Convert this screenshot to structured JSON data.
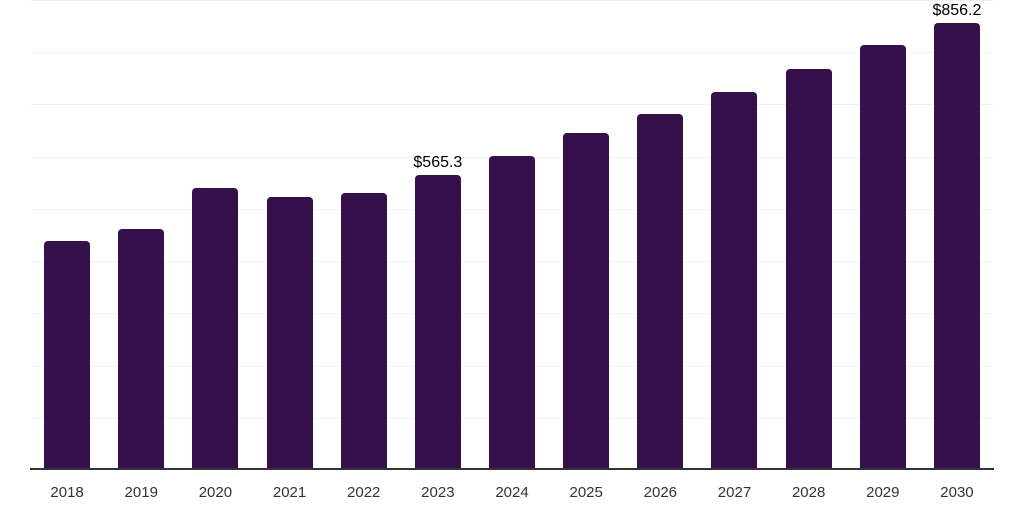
{
  "chart_data": {
    "type": "bar",
    "title": "",
    "xlabel": "",
    "ylabel": "",
    "categories": [
      "2018",
      "2019",
      "2020",
      "2021",
      "2022",
      "2023",
      "2024",
      "2025",
      "2026",
      "2027",
      "2028",
      "2029",
      "2030"
    ],
    "values": [
      439.1,
      460.9,
      540.6,
      523.3,
      531.0,
      565.3,
      601.3,
      645.3,
      681.7,
      723.2,
      767.3,
      813.8,
      856.2
    ],
    "point_labels": {
      "2023": "$565.3",
      "2030": "$856.2"
    },
    "ylim": [
      0,
      900
    ],
    "grid_step": 100,
    "grid": true,
    "legend": false,
    "colors": {
      "bar": "#36104a",
      "gridline": "#f2f2f2",
      "axis_line": "#333333",
      "tick_label": "#333333",
      "value_label": "#000000",
      "background": "#ffffff"
    }
  }
}
